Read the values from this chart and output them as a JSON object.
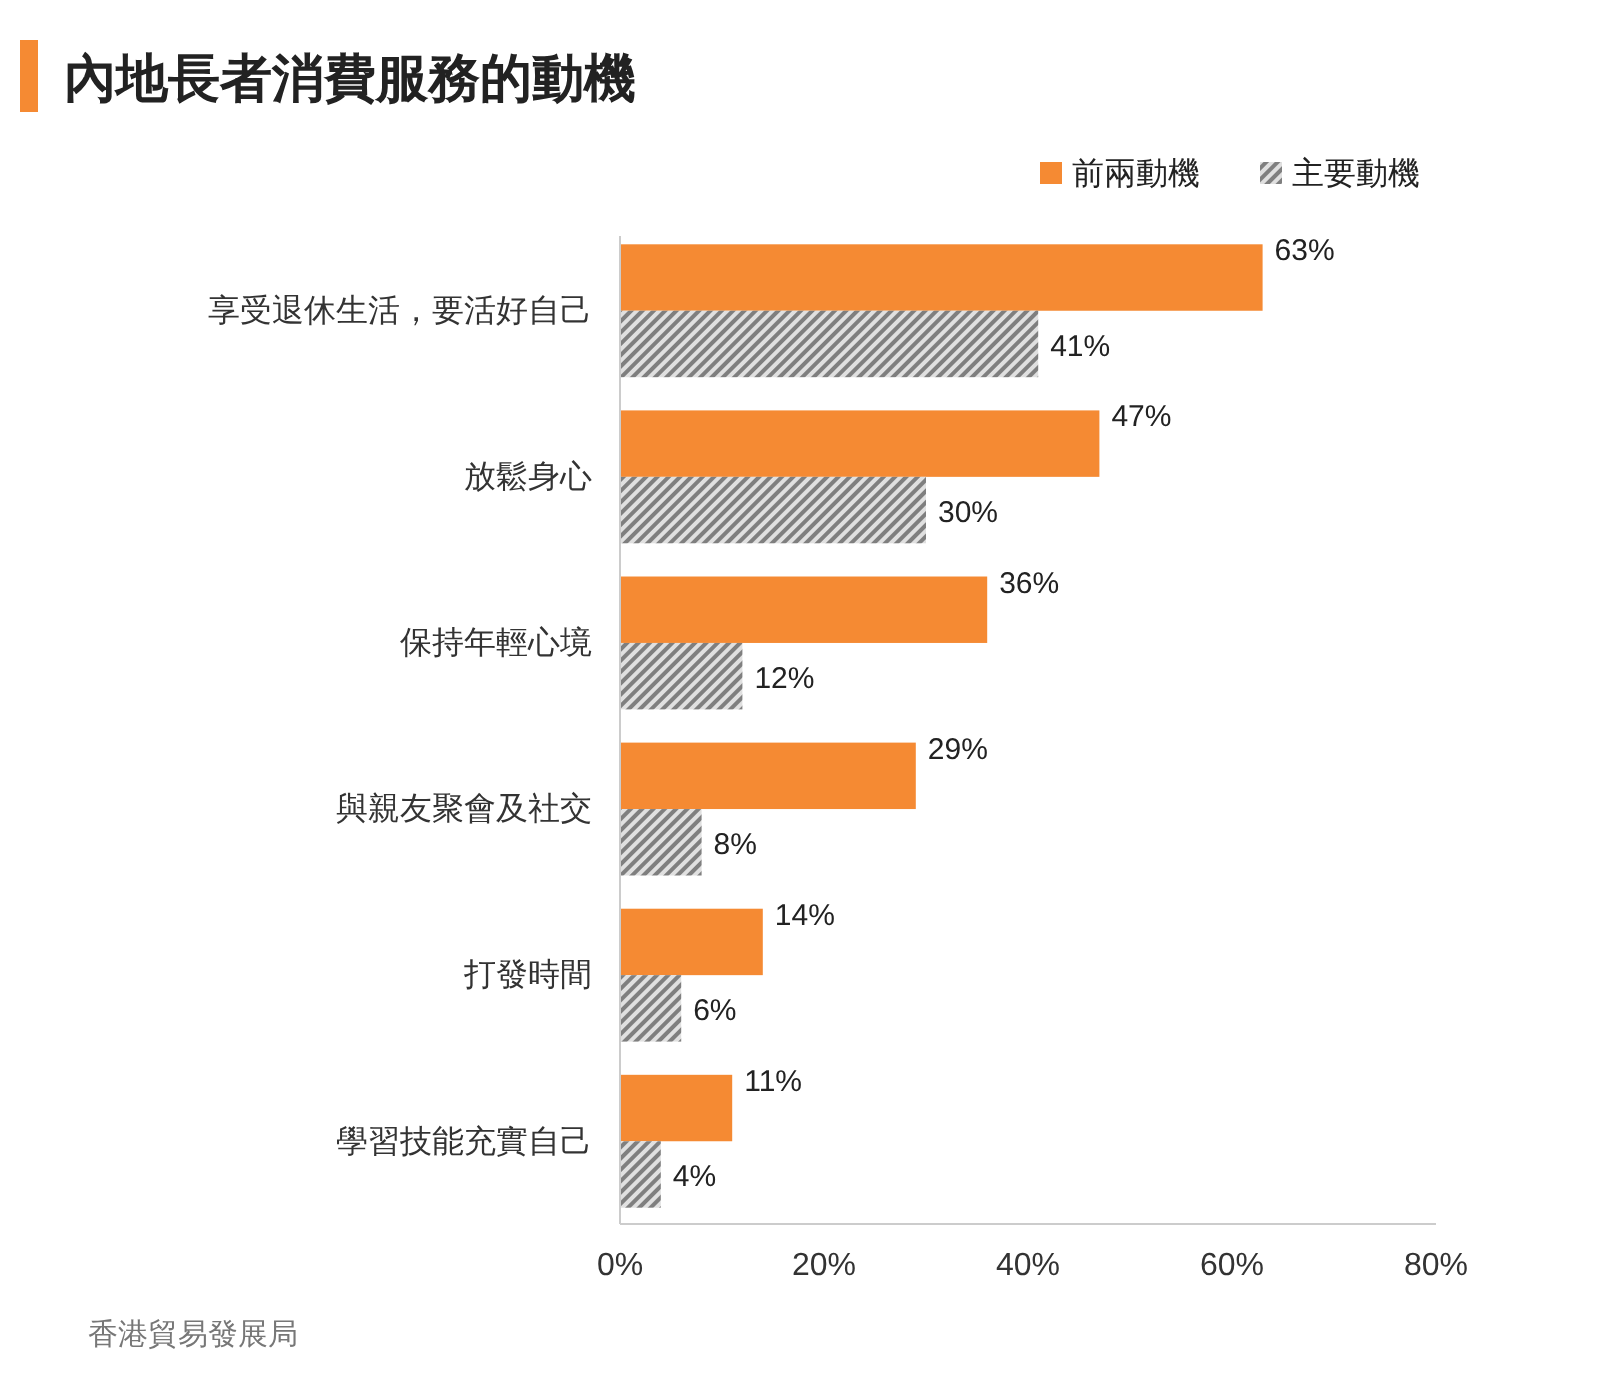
{
  "chart_data": {
    "type": "bar",
    "orientation": "horizontal",
    "title": "內地長者消費服務的動機",
    "categories": [
      "享受退休生活，要活好自己",
      "放鬆身心",
      "保持年輕心境",
      "與親友聚會及社交",
      "打發時間",
      "學習技能充實自己"
    ],
    "series": [
      {
        "name": "前兩動機",
        "color": "#f58a33",
        "values": [
          63,
          47,
          36,
          29,
          14,
          11
        ],
        "value_labels": [
          "63%",
          "47%",
          "36%",
          "29%",
          "14%",
          "11%"
        ]
      },
      {
        "name": "主要動機",
        "color": "#7f7f7f",
        "values": [
          41,
          30,
          12,
          8,
          6,
          4
        ],
        "value_labels": [
          "41%",
          "30%",
          "12%",
          "8%",
          "6%",
          "4%"
        ]
      }
    ],
    "xlim": [
      0,
      80
    ],
    "xticks": [
      {
        "value": 0,
        "label": "0%"
      },
      {
        "value": 20,
        "label": "20%"
      },
      {
        "value": 40,
        "label": "40%"
      },
      {
        "value": 60,
        "label": "60%"
      },
      {
        "value": 80,
        "label": "80%"
      }
    ],
    "grid": false,
    "legend": "top right",
    "annotations": [
      "香港貿易發展局"
    ]
  }
}
